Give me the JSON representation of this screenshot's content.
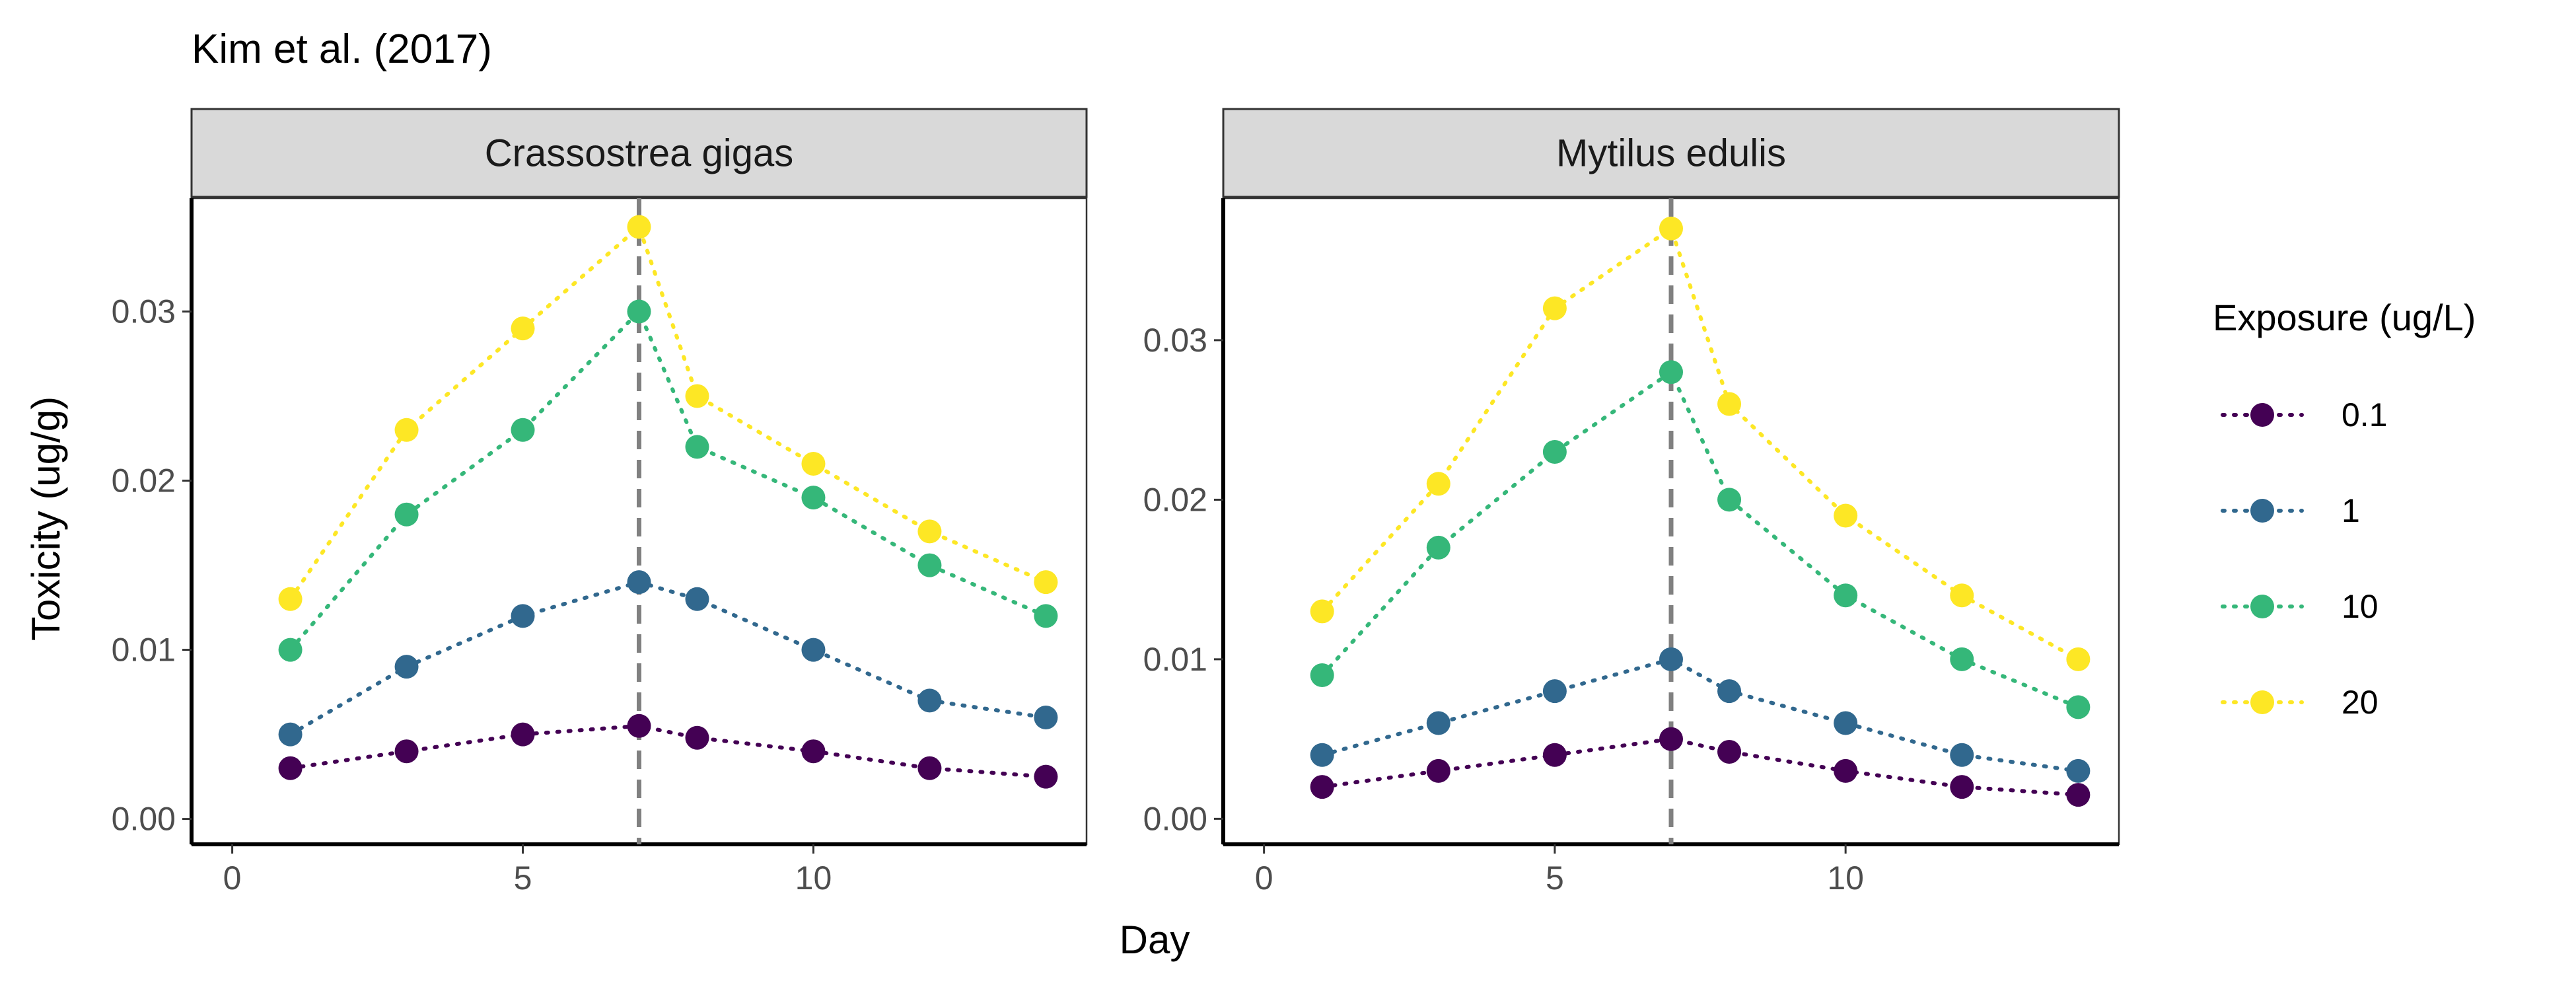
{
  "chart_data": {
    "type": "line",
    "title": "Kim et al. (2017)",
    "xlabel": "Day",
    "ylabel": "Toxicity (ug/g)",
    "xlim": [
      -0.7,
      14.7
    ],
    "x_ticks": [
      0,
      5,
      10
    ],
    "reference_line_x": 7,
    "grid": false,
    "legend": {
      "title": "Exposure (ug/L)",
      "placement": "right",
      "entries": [
        "0.1",
        "1",
        "10",
        "20"
      ]
    },
    "colors": {
      "0.1": "#440154",
      "1": "#31688e",
      "10": "#35b779",
      "20": "#fde725"
    },
    "panels": [
      {
        "name": "Crassostrea gigas",
        "ylim": [
          -0.0015,
          0.0367
        ],
        "y_ticks": [
          "0.00",
          "0.01",
          "0.02",
          "0.03"
        ],
        "x": [
          1,
          3,
          5,
          7,
          8,
          10,
          12,
          14
        ],
        "series": [
          {
            "name": "0.1",
            "values": [
              0.003,
              0.004,
              0.005,
              0.0055,
              0.0048,
              0.004,
              0.003,
              0.0025
            ]
          },
          {
            "name": "1",
            "values": [
              0.005,
              0.009,
              0.012,
              0.014,
              0.013,
              0.01,
              0.007,
              0.006
            ]
          },
          {
            "name": "10",
            "values": [
              0.01,
              0.018,
              0.023,
              0.03,
              0.022,
              0.019,
              0.015,
              0.012
            ]
          },
          {
            "name": "20",
            "values": [
              0.013,
              0.023,
              0.029,
              0.035,
              0.025,
              0.021,
              0.017,
              0.014
            ]
          }
        ]
      },
      {
        "name": "Mytilus edulis",
        "ylim": [
          -0.0016,
          0.0389
        ],
        "y_ticks": [
          "0.00",
          "0.01",
          "0.02",
          "0.03"
        ],
        "x": [
          1,
          3,
          5,
          7,
          8,
          10,
          12,
          14
        ],
        "series": [
          {
            "name": "0.1",
            "values": [
              0.002,
              0.003,
              0.004,
              0.005,
              0.0042,
              0.003,
              0.002,
              0.0015
            ]
          },
          {
            "name": "1",
            "values": [
              0.004,
              0.006,
              0.008,
              0.01,
              0.008,
              0.006,
              0.004,
              0.003
            ]
          },
          {
            "name": "10",
            "values": [
              0.009,
              0.017,
              0.023,
              0.028,
              0.02,
              0.014,
              0.01,
              0.007
            ]
          },
          {
            "name": "20",
            "values": [
              0.013,
              0.021,
              0.032,
              0.037,
              0.026,
              0.019,
              0.014,
              0.01
            ]
          }
        ]
      }
    ]
  }
}
